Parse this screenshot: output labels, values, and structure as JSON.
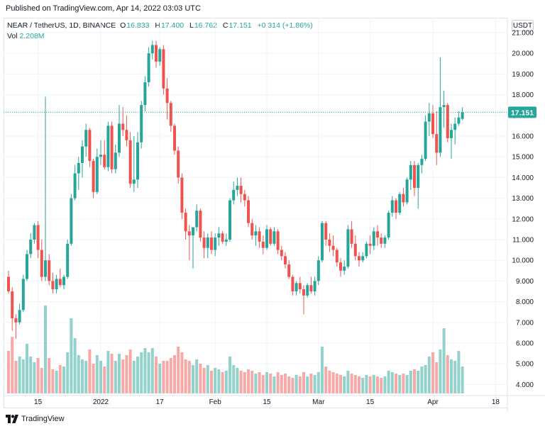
{
  "header": {
    "published": "Published on TradingView.com, Apr 14, 2022 03:03 UTC"
  },
  "legend": {
    "symbol": "NEAR / TetherUS, 1D, BINANCE",
    "o_label": "O",
    "o_value": "16.833",
    "h_label": "H",
    "h_value": "17.400",
    "l_label": "L",
    "l_value": "16.762",
    "c_label": "C",
    "c_value": "17.151",
    "change": "+0.314 (+1.86%)",
    "vol_label": "Vol",
    "vol_value": "2.208M"
  },
  "currency": "USDT",
  "last_price_label": "17.151",
  "footer": {
    "brand": "TradingView"
  },
  "colors": {
    "up": "#26a69a",
    "down": "#ef5350",
    "up_volume": "#92d2cc",
    "down_volume": "#f7a9a7",
    "grid": "#f0f3fa",
    "price_line": "#26a69a"
  },
  "chart_data": {
    "type": "candlestick",
    "symbol": "NEAR / TetherUS",
    "interval": "1D",
    "exchange": "BINANCE",
    "y_ticks": [
      "21.000",
      "20.000",
      "19.000",
      "18.000",
      "17.000",
      "16.000",
      "15.000",
      "14.000",
      "13.000",
      "12.000",
      "11.000",
      "10.000",
      "9.000",
      "8.000",
      "7.000",
      "6.000",
      "5.000",
      "4.000"
    ],
    "ylim": [
      3.8,
      21.6
    ],
    "x_ticks": [
      {
        "label": "15",
        "index": 8
      },
      {
        "label": "2022",
        "index": 25
      },
      {
        "label": "17",
        "index": 41
      },
      {
        "label": "Feb",
        "index": 56
      },
      {
        "label": "15",
        "index": 70
      },
      {
        "label": "Mar",
        "index": 84
      },
      {
        "label": "15",
        "index": 98
      },
      {
        "label": "Apr",
        "index": 115
      },
      {
        "label": "18",
        "index": 132
      }
    ],
    "last_price": 17.151,
    "ohlc": [
      [
        9.2,
        9.5,
        8.4,
        8.5
      ],
      [
        8.5,
        8.7,
        6.6,
        7.2
      ],
      [
        7.2,
        7.4,
        6.2,
        7.0
      ],
      [
        7.0,
        7.9,
        6.9,
        7.6
      ],
      [
        7.6,
        9.3,
        7.5,
        9.1
      ],
      [
        9.1,
        10.5,
        9.0,
        10.3
      ],
      [
        10.3,
        11.3,
        10.1,
        11.0
      ],
      [
        11.0,
        11.8,
        10.8,
        11.7
      ],
      [
        11.7,
        11.9,
        10.1,
        10.5
      ],
      [
        10.5,
        11.0,
        9.0,
        9.2
      ],
      [
        9.2,
        17.9,
        9.0,
        10.0
      ],
      [
        10.0,
        10.3,
        8.8,
        9.0
      ],
      [
        9.0,
        9.4,
        8.4,
        8.6
      ],
      [
        8.6,
        9.3,
        8.4,
        9.1
      ],
      [
        9.1,
        9.6,
        8.7,
        8.8
      ],
      [
        8.8,
        9.3,
        8.6,
        9.2
      ],
      [
        9.2,
        11.0,
        9.1,
        10.8
      ],
      [
        10.8,
        13.2,
        10.7,
        13.0
      ],
      [
        13.0,
        14.6,
        12.9,
        14.2
      ],
      [
        14.2,
        15.0,
        13.4,
        14.7
      ],
      [
        14.7,
        15.8,
        14.0,
        15.5
      ],
      [
        15.5,
        16.6,
        15.0,
        16.3
      ],
      [
        16.3,
        16.4,
        14.5,
        14.8
      ],
      [
        14.8,
        14.9,
        13.0,
        13.3
      ],
      [
        13.3,
        15.4,
        13.2,
        15.0
      ],
      [
        15.0,
        15.8,
        14.6,
        15.1
      ],
      [
        15.1,
        15.8,
        14.4,
        14.5
      ],
      [
        14.5,
        16.7,
        14.3,
        16.5
      ],
      [
        16.5,
        16.7,
        14.2,
        14.4
      ],
      [
        14.4,
        15.6,
        14.2,
        15.2
      ],
      [
        15.2,
        17.5,
        15.0,
        16.6
      ],
      [
        16.6,
        17.4,
        16.0,
        16.3
      ],
      [
        16.3,
        17.0,
        15.5,
        15.8
      ],
      [
        15.8,
        16.2,
        13.5,
        13.7
      ],
      [
        13.7,
        16.0,
        13.3,
        13.9
      ],
      [
        13.9,
        16.2,
        13.5,
        15.7
      ],
      [
        15.7,
        17.7,
        15.4,
        17.5
      ],
      [
        17.5,
        18.9,
        17.2,
        18.6
      ],
      [
        18.6,
        20.3,
        18.4,
        20.0
      ],
      [
        20.0,
        20.6,
        19.7,
        20.4
      ],
      [
        20.4,
        20.6,
        19.3,
        19.6
      ],
      [
        19.6,
        20.3,
        19.4,
        20.2
      ],
      [
        20.2,
        20.4,
        18.0,
        18.3
      ],
      [
        18.3,
        18.8,
        16.8,
        17.6
      ],
      [
        17.6,
        17.7,
        16.2,
        16.5
      ],
      [
        16.5,
        16.6,
        15.1,
        15.3
      ],
      [
        15.3,
        15.5,
        13.7,
        14.0
      ],
      [
        14.0,
        14.2,
        12.0,
        12.3
      ],
      [
        12.3,
        12.5,
        11.0,
        11.4
      ],
      [
        11.4,
        11.7,
        10.0,
        11.2
      ],
      [
        11.2,
        11.6,
        9.6,
        11.6
      ],
      [
        11.6,
        12.7,
        11.4,
        12.4
      ],
      [
        12.4,
        12.5,
        10.9,
        11.1
      ],
      [
        11.1,
        11.4,
        10.1,
        10.6
      ],
      [
        10.6,
        11.3,
        10.1,
        11.1
      ],
      [
        11.1,
        11.4,
        10.3,
        10.5
      ],
      [
        10.5,
        11.3,
        10.2,
        11.1
      ],
      [
        11.1,
        11.6,
        10.7,
        11.3
      ],
      [
        11.3,
        11.4,
        10.8,
        10.9
      ],
      [
        10.9,
        11.3,
        10.7,
        11.0
      ],
      [
        11.0,
        13.0,
        10.9,
        12.9
      ],
      [
        12.9,
        13.8,
        12.7,
        13.4
      ],
      [
        13.4,
        14.0,
        13.1,
        13.6
      ],
      [
        13.6,
        14.0,
        12.8,
        13.2
      ],
      [
        13.2,
        13.4,
        12.6,
        12.9
      ],
      [
        12.9,
        13.1,
        11.6,
        11.8
      ],
      [
        11.8,
        12.0,
        11.0,
        11.2
      ],
      [
        11.2,
        11.7,
        10.7,
        11.4
      ],
      [
        11.4,
        11.6,
        10.6,
        10.9
      ],
      [
        10.9,
        11.2,
        10.3,
        10.6
      ],
      [
        10.6,
        11.7,
        10.5,
        11.5
      ],
      [
        11.5,
        11.6,
        10.7,
        10.8
      ],
      [
        10.8,
        11.6,
        10.7,
        11.4
      ],
      [
        11.4,
        11.5,
        10.3,
        10.5
      ],
      [
        10.5,
        10.7,
        10.0,
        10.2
      ],
      [
        10.2,
        10.4,
        9.6,
        9.8
      ],
      [
        9.8,
        10.0,
        9.1,
        9.2
      ],
      [
        9.2,
        9.3,
        8.3,
        8.5
      ],
      [
        8.5,
        9.0,
        8.3,
        8.9
      ],
      [
        8.9,
        9.2,
        8.4,
        8.6
      ],
      [
        8.6,
        8.8,
        7.4,
        8.3
      ],
      [
        8.3,
        8.9,
        8.2,
        8.8
      ],
      [
        8.8,
        9.2,
        8.4,
        8.5
      ],
      [
        8.5,
        9.2,
        8.3,
        9.0
      ],
      [
        9.0,
        10.2,
        8.8,
        10.0
      ],
      [
        10.0,
        11.9,
        9.9,
        11.8
      ],
      [
        11.8,
        11.9,
        10.7,
        11.0
      ],
      [
        11.0,
        11.3,
        10.4,
        10.7
      ],
      [
        10.7,
        11.2,
        10.2,
        10.5
      ],
      [
        10.5,
        10.6,
        9.7,
        9.9
      ],
      [
        9.9,
        10.1,
        9.2,
        9.5
      ],
      [
        9.5,
        10.0,
        9.3,
        9.7
      ],
      [
        9.7,
        11.7,
        9.6,
        11.5
      ],
      [
        11.5,
        11.9,
        10.6,
        10.8
      ],
      [
        10.8,
        11.2,
        10.0,
        10.2
      ],
      [
        10.2,
        10.4,
        9.7,
        10.0
      ],
      [
        10.0,
        10.4,
        9.9,
        10.2
      ],
      [
        10.2,
        10.9,
        10.1,
        10.8
      ],
      [
        10.8,
        11.2,
        10.3,
        10.7
      ],
      [
        10.7,
        11.6,
        10.5,
        11.4
      ],
      [
        11.4,
        11.7,
        10.7,
        11.1
      ],
      [
        11.1,
        11.3,
        10.6,
        10.8
      ],
      [
        10.8,
        11.2,
        10.6,
        11.1
      ],
      [
        11.1,
        12.4,
        11.0,
        12.3
      ],
      [
        12.3,
        13.1,
        12.1,
        12.9
      ],
      [
        12.9,
        13.0,
        12.0,
        12.3
      ],
      [
        12.3,
        13.3,
        12.2,
        13.2
      ],
      [
        13.2,
        13.5,
        12.6,
        12.8
      ],
      [
        12.8,
        14.0,
        12.7,
        13.9
      ],
      [
        13.9,
        14.8,
        13.4,
        14.6
      ],
      [
        14.6,
        14.8,
        13.1,
        13.5
      ],
      [
        13.5,
        14.7,
        12.5,
        14.6
      ],
      [
        14.6,
        15.1,
        14.2,
        14.9
      ],
      [
        14.9,
        17.0,
        14.8,
        16.7
      ],
      [
        16.7,
        17.6,
        16.0,
        17.1
      ],
      [
        17.1,
        17.5,
        15.9,
        16.1
      ],
      [
        16.1,
        17.2,
        14.6,
        15.2
      ],
      [
        15.2,
        19.8,
        15.0,
        17.4
      ],
      [
        17.4,
        18.2,
        16.4,
        17.5
      ],
      [
        17.5,
        17.6,
        15.7,
        15.9
      ],
      [
        15.9,
        16.6,
        14.9,
        16.3
      ],
      [
        16.3,
        16.9,
        15.6,
        16.6
      ],
      [
        16.6,
        17.2,
        16.5,
        16.9
      ],
      [
        16.833,
        17.4,
        16.762,
        17.151
      ]
    ],
    "volume_note": "volume histogram; relative heights",
    "volume": [
      3.0,
      4.0,
      2.3,
      2.6,
      2.4,
      3.5,
      2.6,
      2.2,
      2.5,
      1.8,
      6.2,
      2.5,
      1.7,
      1.6,
      2.0,
      1.9,
      2.9,
      5.3,
      3.9,
      2.7,
      2.4,
      2.3,
      3.1,
      2.1,
      2.7,
      2.3,
      1.9,
      3.0,
      2.8,
      2.3,
      2.8,
      2.4,
      2.7,
      3.1,
      2.3,
      2.6,
      2.9,
      3.2,
      2.9,
      3.2,
      2.6,
      2.1,
      2.3,
      2.3,
      2.5,
      2.7,
      3.3,
      2.9,
      2.4,
      2.3,
      2.0,
      2.4,
      2.1,
      1.8,
      2.0,
      1.6,
      1.8,
      1.7,
      1.5,
      1.6,
      2.6,
      2.0,
      1.8,
      1.6,
      1.5,
      1.7,
      1.6,
      1.4,
      1.5,
      1.3,
      1.5,
      1.4,
      1.2,
      1.5,
      1.3,
      1.4,
      1.2,
      1.1,
      1.3,
      1.2,
      1.5,
      1.2,
      1.4,
      1.3,
      1.5,
      3.3,
      1.9,
      1.6,
      1.5,
      1.4,
      1.3,
      1.2,
      1.6,
      1.4,
      1.3,
      1.2,
      1.1,
      1.3,
      1.2,
      1.3,
      1.2,
      1.1,
      1.2,
      1.6,
      1.5,
      1.4,
      1.3,
      1.4,
      1.3,
      1.6,
      1.7,
      1.6,
      1.9,
      2.0,
      2.6,
      2.9,
      2.2,
      3.1,
      4.6,
      2.7,
      2.4,
      2.3,
      3.0,
      1.9,
      1.2
    ],
    "volume_dir": []
  }
}
